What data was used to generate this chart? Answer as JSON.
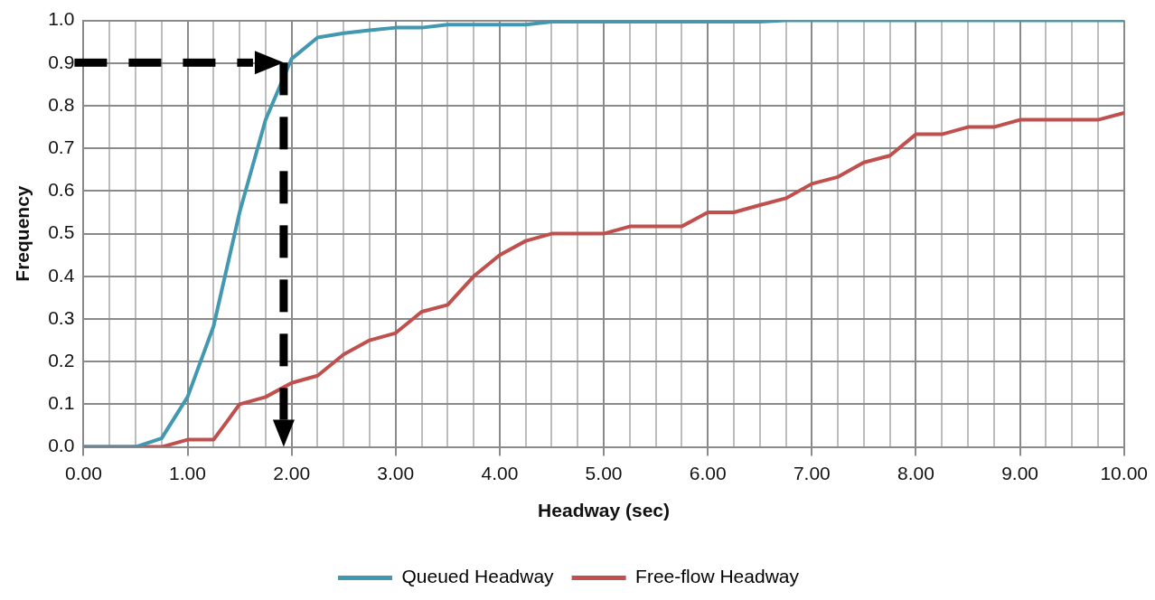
{
  "chart_data": {
    "type": "line",
    "xlabel": "Headway (sec)",
    "ylabel": "Frequency",
    "x": [
      0,
      0.25,
      0.5,
      0.75,
      1,
      1.25,
      1.5,
      1.75,
      2,
      2.25,
      2.5,
      2.75,
      3,
      3.25,
      3.5,
      3.75,
      4,
      4.25,
      4.5,
      4.75,
      5,
      5.25,
      5.5,
      5.75,
      6,
      6.25,
      6.5,
      6.75,
      7,
      7.25,
      7.5,
      7.75,
      8,
      8.25,
      8.5,
      8.75,
      9,
      9.25,
      9.5,
      9.75,
      10
    ],
    "series": [
      {
        "name": "Queued Headway",
        "color": "#4198b0",
        "values": [
          0,
          0,
          0,
          0.02,
          0.117,
          0.283,
          0.55,
          0.767,
          0.91,
          0.96,
          0.97,
          0.977,
          0.983,
          0.983,
          0.99,
          0.99,
          0.99,
          0.99,
          0.997,
          0.997,
          0.997,
          0.997,
          0.997,
          0.997,
          0.997,
          0.997,
          0.997,
          1,
          1,
          1,
          1,
          1,
          1,
          1,
          1,
          1,
          1,
          1,
          1,
          1,
          1
        ]
      },
      {
        "name": "Free-flow Headway",
        "color": "#c0504d",
        "values": [
          0,
          0,
          0,
          0,
          0.017,
          0.017,
          0.1,
          0.117,
          0.15,
          0.167,
          0.217,
          0.25,
          0.267,
          0.317,
          0.333,
          0.4,
          0.45,
          0.483,
          0.5,
          0.5,
          0.5,
          0.517,
          0.517,
          0.517,
          0.55,
          0.55,
          0.567,
          0.583,
          0.617,
          0.633,
          0.667,
          0.683,
          0.733,
          0.733,
          0.75,
          0.75,
          0.767,
          0.767,
          0.767,
          0.767,
          0.783
        ]
      }
    ],
    "xlim": [
      0,
      10
    ],
    "xticks": [
      {
        "value": 0,
        "label": "0.00"
      },
      {
        "value": 0.25,
        "label": null
      },
      {
        "value": 0.5,
        "label": null
      },
      {
        "value": 0.75,
        "label": null
      },
      {
        "value": 1,
        "label": "1.00"
      },
      {
        "value": 1.25,
        "label": null
      },
      {
        "value": 1.5,
        "label": null
      },
      {
        "value": 1.75,
        "label": null
      },
      {
        "value": 2,
        "label": "2.00"
      },
      {
        "value": 2.25,
        "label": null
      },
      {
        "value": 2.5,
        "label": null
      },
      {
        "value": 2.75,
        "label": null
      },
      {
        "value": 3,
        "label": "3.00"
      },
      {
        "value": 3.25,
        "label": null
      },
      {
        "value": 3.5,
        "label": null
      },
      {
        "value": 3.75,
        "label": null
      },
      {
        "value": 4,
        "label": "4.00"
      },
      {
        "value": 4.25,
        "label": null
      },
      {
        "value": 4.5,
        "label": null
      },
      {
        "value": 4.75,
        "label": null
      },
      {
        "value": 5,
        "label": "5.00"
      },
      {
        "value": 5.25,
        "label": null
      },
      {
        "value": 5.5,
        "label": null
      },
      {
        "value": 5.75,
        "label": null
      },
      {
        "value": 6,
        "label": "6.00"
      },
      {
        "value": 6.25,
        "label": null
      },
      {
        "value": 6.5,
        "label": null
      },
      {
        "value": 6.75,
        "label": null
      },
      {
        "value": 7,
        "label": "7.00"
      },
      {
        "value": 7.25,
        "label": null
      },
      {
        "value": 7.5,
        "label": null
      },
      {
        "value": 7.75,
        "label": null
      },
      {
        "value": 8,
        "label": "8.00"
      },
      {
        "value": 8.25,
        "label": null
      },
      {
        "value": 8.5,
        "label": null
      },
      {
        "value": 8.75,
        "label": null
      },
      {
        "value": 9,
        "label": "9.00"
      },
      {
        "value": 9.25,
        "label": null
      },
      {
        "value": 9.5,
        "label": null
      },
      {
        "value": 9.75,
        "label": null
      },
      {
        "value": 10,
        "label": "10.00"
      }
    ],
    "ylim": [
      0,
      1
    ],
    "yticks": [
      {
        "value": 0,
        "label": "0.0"
      },
      0.1,
      0.2,
      0.3,
      0.4,
      0.5,
      0.6,
      0.7,
      0.8,
      0.9,
      {
        "value": 1,
        "label": "1.0"
      }
    ],
    "grid": true,
    "legend": "bottom",
    "marker": "none",
    "line_style": "solid"
  }
}
